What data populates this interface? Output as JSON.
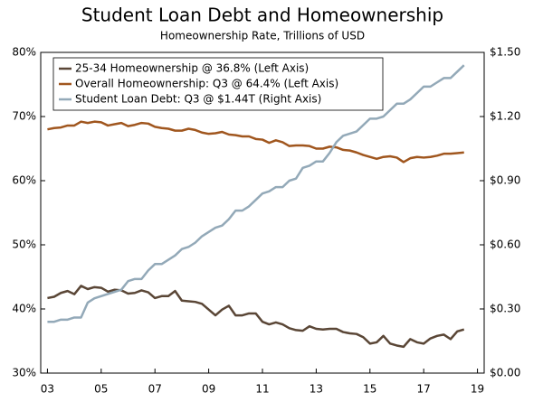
{
  "chart_data": {
    "type": "line",
    "title": "Student Loan Debt and Homeownership",
    "subtitle": "Homeownership Rate, Trillions of USD",
    "x": [
      2003,
      2003.25,
      2003.5,
      2003.75,
      2004,
      2004.25,
      2004.5,
      2004.75,
      2005,
      2005.25,
      2005.5,
      2005.75,
      2006,
      2006.25,
      2006.5,
      2006.75,
      2007,
      2007.25,
      2007.5,
      2007.75,
      2008,
      2008.25,
      2008.5,
      2008.75,
      2009,
      2009.25,
      2009.5,
      2009.75,
      2010,
      2010.25,
      2010.5,
      2010.75,
      2011,
      2011.25,
      2011.5,
      2011.75,
      2012,
      2012.25,
      2012.5,
      2012.75,
      2013,
      2013.25,
      2013.5,
      2013.75,
      2014,
      2014.25,
      2014.5,
      2014.75,
      2015,
      2015.25,
      2015.5,
      2015.75,
      2016,
      2016.25,
      2016.5,
      2016.75,
      2017,
      2017.25,
      2017.5,
      2017.75,
      2018,
      2018.25,
      2018.5
    ],
    "xlim": [
      2002.75,
      2019.25
    ],
    "xticks": [
      {
        "value": 2003,
        "label": "03"
      },
      {
        "value": 2005,
        "label": "05"
      },
      {
        "value": 2007,
        "label": "07"
      },
      {
        "value": 2009,
        "label": "09"
      },
      {
        "value": 2011,
        "label": "11"
      },
      {
        "value": 2013,
        "label": "13"
      },
      {
        "value": 2015,
        "label": "15"
      },
      {
        "value": 2017,
        "label": "17"
      },
      {
        "value": 2019,
        "label": "19"
      }
    ],
    "ylim": [
      30,
      80
    ],
    "yticks": [
      {
        "value": 30,
        "label": "30%"
      },
      {
        "value": 40,
        "label": "40%"
      },
      {
        "value": 50,
        "label": "50%"
      },
      {
        "value": 60,
        "label": "60%"
      },
      {
        "value": 70,
        "label": "70%"
      },
      {
        "value": 80,
        "label": "80%"
      }
    ],
    "y2lim": [
      0,
      1.5
    ],
    "y2ticks": [
      {
        "value": 0,
        "label": "$0.00"
      },
      {
        "value": 0.3,
        "label": "$0.30"
      },
      {
        "value": 0.6,
        "label": "$0.60"
      },
      {
        "value": 0.9,
        "label": "$0.90"
      },
      {
        "value": 1.2,
        "label": "$1.20"
      },
      {
        "value": 1.5,
        "label": "$1.50"
      }
    ],
    "legend": "upper left",
    "series": [
      {
        "name": "25-34 Homeownership @ 36.8% (Left Axis)",
        "color": "#5a4636",
        "axis": "y",
        "values": [
          41.7,
          41.9,
          42.5,
          42.8,
          42.3,
          43.6,
          43.1,
          43.4,
          43.3,
          42.7,
          43.0,
          42.9,
          42.4,
          42.5,
          42.9,
          42.6,
          41.7,
          42.0,
          42.0,
          42.8,
          41.3,
          41.2,
          41.1,
          40.8,
          39.9,
          39.0,
          39.9,
          40.5,
          39.0,
          39.0,
          39.3,
          39.3,
          38.0,
          37.6,
          37.9,
          37.6,
          37.0,
          36.7,
          36.6,
          37.3,
          36.9,
          36.8,
          36.9,
          36.9,
          36.4,
          36.2,
          36.1,
          35.6,
          34.6,
          34.8,
          35.8,
          34.6,
          34.3,
          34.1,
          35.3,
          34.8,
          34.6,
          35.4,
          35.8,
          36.0,
          35.3,
          36.5,
          36.8
        ]
      },
      {
        "name": "Overall Homeownership: Q3 @ 64.4%  (Left Axis)",
        "color": "#a0561e",
        "axis": "y",
        "values": [
          68.0,
          68.2,
          68.3,
          68.6,
          68.6,
          69.2,
          69.0,
          69.2,
          69.1,
          68.6,
          68.8,
          69.0,
          68.5,
          68.7,
          69.0,
          68.9,
          68.4,
          68.2,
          68.1,
          67.8,
          67.8,
          68.1,
          67.9,
          67.5,
          67.3,
          67.4,
          67.6,
          67.2,
          67.1,
          66.9,
          66.9,
          66.5,
          66.4,
          65.9,
          66.3,
          66.0,
          65.4,
          65.5,
          65.5,
          65.4,
          65.0,
          65.0,
          65.3,
          65.2,
          64.8,
          64.7,
          64.4,
          64.0,
          63.7,
          63.4,
          63.7,
          63.8,
          63.6,
          62.9,
          63.5,
          63.7,
          63.6,
          63.7,
          63.9,
          64.2,
          64.2,
          64.3,
          64.4
        ]
      },
      {
        "name": "Student Loan Debt: Q3 @ $1.44T (Right Axis)",
        "color": "#93a9b8",
        "axis": "y2",
        "values": [
          0.24,
          0.24,
          0.25,
          0.25,
          0.26,
          0.26,
          0.33,
          0.35,
          0.36,
          0.37,
          0.38,
          0.39,
          0.43,
          0.44,
          0.44,
          0.48,
          0.51,
          0.51,
          0.53,
          0.55,
          0.58,
          0.59,
          0.61,
          0.64,
          0.66,
          0.68,
          0.69,
          0.72,
          0.76,
          0.76,
          0.78,
          0.81,
          0.84,
          0.85,
          0.87,
          0.87,
          0.9,
          0.91,
          0.96,
          0.97,
          0.99,
          0.99,
          1.03,
          1.08,
          1.11,
          1.12,
          1.13,
          1.16,
          1.19,
          1.19,
          1.2,
          1.23,
          1.26,
          1.26,
          1.28,
          1.31,
          1.34,
          1.34,
          1.36,
          1.38,
          1.38,
          1.41,
          1.44
        ]
      }
    ]
  }
}
